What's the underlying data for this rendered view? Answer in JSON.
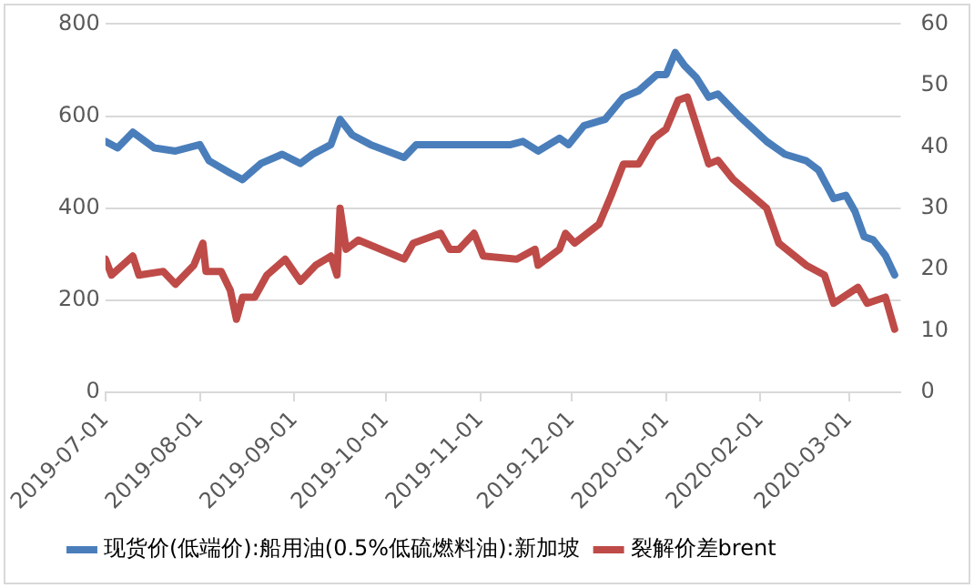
{
  "chart_data": {
    "type": "line",
    "legend": "bottom",
    "grid": "y",
    "marker": "none",
    "line_style": "solid",
    "xlim": [
      "2019-07-01",
      "2020-03-18"
    ],
    "xticks": [
      "2019-07-01",
      "2019-08-01",
      "2019-09-01",
      "2019-10-01",
      "2019-11-01",
      "2019-12-01",
      "2020-01-01",
      "2020-02-01",
      "2020-03-01"
    ],
    "ylim": [
      0,
      800
    ],
    "yticks": [
      0,
      200,
      400,
      600,
      800
    ],
    "y2lim": [
      0,
      60
    ],
    "y2ticks": [
      0,
      10,
      20,
      30,
      40,
      50,
      60
    ],
    "series": [
      {
        "name": "现货价(低端价):船用油(0.5%低硫燃料油):新加坡",
        "color": "#4a7ebb",
        "x": [
          "2019-07-01",
          "2019-07-05",
          "2019-07-10",
          "2019-07-17",
          "2019-07-24",
          "2019-08-01",
          "2019-08-04",
          "2019-08-11",
          "2019-08-15",
          "2019-08-21",
          "2019-08-28",
          "2019-09-03",
          "2019-09-07",
          "2019-09-13",
          "2019-09-16",
          "2019-09-20",
          "2019-09-26",
          "2019-10-07",
          "2019-10-11",
          "2019-10-20",
          "2019-10-30",
          "2019-11-11",
          "2019-11-15",
          "2019-11-20",
          "2019-11-27",
          "2019-11-30",
          "2019-12-05",
          "2019-12-12",
          "2019-12-18",
          "2019-12-23",
          "2019-12-29",
          "2020-01-01",
          "2020-01-04",
          "2020-01-07",
          "2020-01-11",
          "2020-01-15",
          "2020-01-18",
          "2020-01-25",
          "2020-02-03",
          "2020-02-09",
          "2020-02-16",
          "2020-02-20",
          "2020-02-25",
          "2020-02-29",
          "2020-03-03",
          "2020-03-06",
          "2020-03-09",
          "2020-03-13",
          "2020-03-16"
        ],
        "values": [
          545,
          531,
          565,
          531,
          524,
          538,
          503,
          476,
          462,
          497,
          517,
          497,
          517,
          538,
          593,
          559,
          538,
          510,
          538,
          538,
          538,
          538,
          545,
          524,
          552,
          538,
          579,
          593,
          641,
          655,
          690,
          690,
          738,
          710,
          683,
          641,
          648,
          600,
          545,
          517,
          503,
          483,
          421,
          428,
          393,
          338,
          331,
          297,
          255
        ]
      },
      {
        "name": "裂解价差brent",
        "color": "#be4b48",
        "axis": "y2",
        "x": [
          "2019-07-01",
          "2019-07-03",
          "2019-07-10",
          "2019-07-12",
          "2019-07-20",
          "2019-07-24",
          "2019-07-30",
          "2019-08-02",
          "2019-08-03",
          "2019-08-08",
          "2019-08-11",
          "2019-08-13",
          "2019-08-15",
          "2019-08-19",
          "2019-08-23",
          "2019-08-29",
          "2019-09-03",
          "2019-09-08",
          "2019-09-13",
          "2019-09-15",
          "2019-09-16",
          "2019-09-18",
          "2019-09-22",
          "2019-10-07",
          "2019-10-10",
          "2019-10-19",
          "2019-10-22",
          "2019-10-25",
          "2019-10-30",
          "2019-11-02",
          "2019-11-13",
          "2019-11-19",
          "2019-11-20",
          "2019-11-27",
          "2019-11-29",
          "2019-12-02",
          "2019-12-10",
          "2019-12-14",
          "2019-12-18",
          "2019-12-23",
          "2019-12-28",
          "2020-01-01",
          "2020-01-05",
          "2020-01-08",
          "2020-01-10",
          "2020-01-15",
          "2020-01-18",
          "2020-01-23",
          "2020-02-03",
          "2020-02-07",
          "2020-02-16",
          "2020-02-22",
          "2020-02-25",
          "2020-03-04",
          "2020-03-07",
          "2020-03-13",
          "2020-03-16"
        ],
        "values": [
          21.7,
          19.1,
          22.2,
          19.1,
          19.7,
          17.6,
          20.7,
          24.3,
          19.7,
          19.7,
          16.6,
          11.9,
          15.5,
          15.5,
          19.1,
          21.7,
          18.1,
          20.7,
          22.2,
          19.1,
          30.0,
          23.3,
          24.8,
          21.7,
          24.3,
          25.9,
          23.3,
          23.3,
          25.9,
          22.2,
          21.7,
          23.3,
          20.7,
          23.3,
          25.9,
          24.3,
          27.4,
          32.1,
          37.2,
          37.2,
          41.4,
          42.9,
          47.6,
          48.1,
          45.0,
          37.2,
          37.8,
          34.7,
          30.0,
          24.3,
          20.7,
          19.1,
          14.5,
          17.1,
          14.5,
          15.5,
          10.3
        ]
      }
    ]
  }
}
